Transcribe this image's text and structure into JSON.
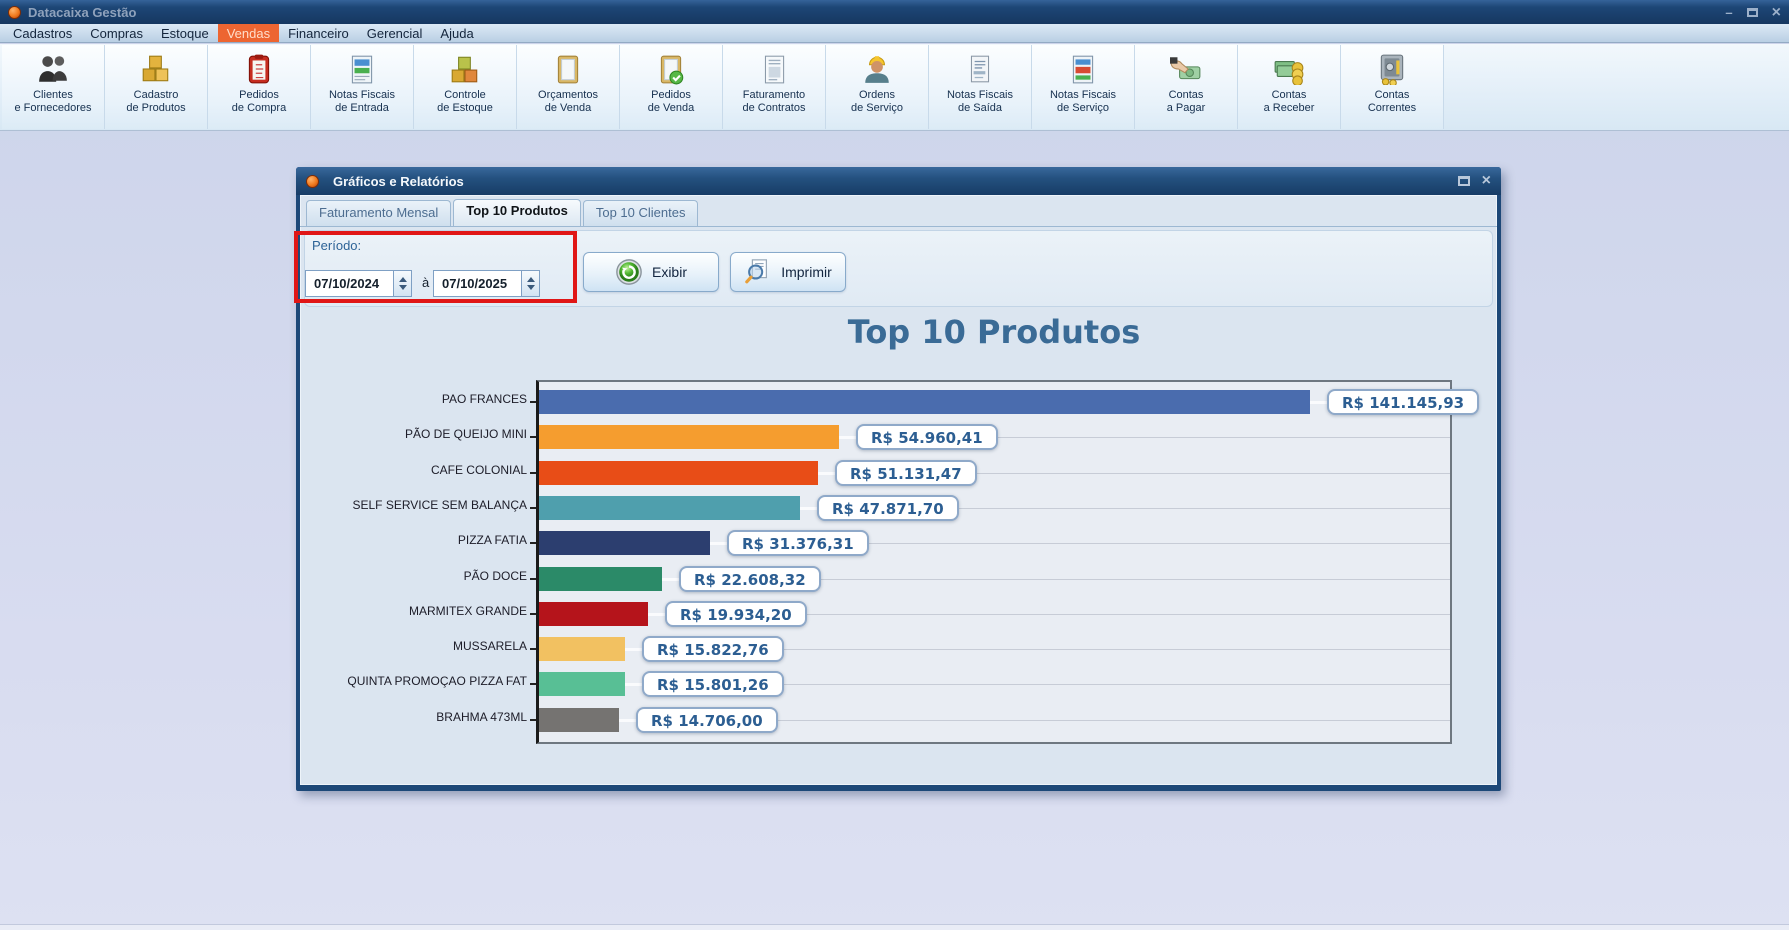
{
  "window": {
    "title": "Datacaixa Gestão",
    "controls": {
      "minimize": "–",
      "restore": "restore",
      "close": "×"
    }
  },
  "menubar": {
    "items": [
      "Cadastros",
      "Compras",
      "Estoque",
      "Vendas",
      "Financeiro",
      "Gerencial",
      "Ajuda"
    ],
    "active": "Vendas"
  },
  "toolbar": {
    "items": [
      {
        "label": "Clientes\ne Fornecedores",
        "icon": "clients-icon"
      },
      {
        "label": "Cadastro\nde Produtos",
        "icon": "products-icon"
      },
      {
        "label": "Pedidos\nde Compra",
        "icon": "purchase-orders-icon"
      },
      {
        "label": "Notas Fiscais\nde Entrada",
        "icon": "invoices-in-icon"
      },
      {
        "label": "Controle\nde Estoque",
        "icon": "stock-icon"
      },
      {
        "label": "Orçamentos\nde Venda",
        "icon": "sales-quotes-icon"
      },
      {
        "label": "Pedidos\nde Venda",
        "icon": "sales-orders-icon"
      },
      {
        "label": "Faturamento\nde Contratos",
        "icon": "contracts-icon"
      },
      {
        "label": "Ordens\nde Serviço",
        "icon": "service-orders-icon"
      },
      {
        "label": "Notas Fiscais\nde Saída",
        "icon": "invoices-out-icon"
      },
      {
        "label": "Notas Fiscais\nde Serviço",
        "icon": "service-invoices-icon"
      },
      {
        "label": "Contas\na Pagar",
        "icon": "payables-icon"
      },
      {
        "label": "Contas\na Receber",
        "icon": "receivables-icon"
      },
      {
        "label": "Contas\nCorrentes",
        "icon": "accounts-icon"
      }
    ]
  },
  "dialog": {
    "title": "Gráficos e Relatórios",
    "controls": {
      "maximize": "maximize",
      "close": "×"
    },
    "tabs": [
      {
        "label": "Faturamento Mensal",
        "active": false
      },
      {
        "label": "Top 10 Produtos",
        "active": true
      },
      {
        "label": "Top 10 Clientes",
        "active": false
      }
    ],
    "period": {
      "label": "Período:",
      "from": "07/10/2024",
      "separator": "à",
      "to": "07/10/2025"
    },
    "buttons": {
      "show": "Exibir",
      "print": "Imprimir"
    }
  },
  "annotation": {
    "type": "red-rectangle",
    "purpose": "highlights period date range fields"
  },
  "chart_data": {
    "type": "bar",
    "orientation": "horizontal",
    "title": "Top 10 Produtos",
    "categories": [
      "PAO FRANCES",
      "PÃO DE QUEIJO MINI",
      "CAFE COLONIAL",
      "SELF SERVICE SEM BALANÇA",
      "PIZZA FATIA",
      "PÃO DOCE",
      "MARMITEX GRANDE",
      "MUSSARELA",
      "QUINTA PROMOÇAO PIZZA FAT",
      "BRAHMA 473ML"
    ],
    "values": [
      141145.93,
      54960.41,
      51131.47,
      47871.7,
      31376.31,
      22608.32,
      19934.2,
      15822.76,
      15801.26,
      14706.0
    ],
    "value_labels": [
      "R$ 141.145,93",
      "R$ 54.960,41",
      "R$ 51.131,47",
      "R$ 47.871,70",
      "R$ 31.376,31",
      "R$ 22.608,32",
      "R$ 19.934,20",
      "R$ 15.822,76",
      "R$ 15.801,26",
      "R$ 14.706,00"
    ],
    "colors": [
      "#4a6cae",
      "#f59d2f",
      "#e84d17",
      "#4f9fad",
      "#2c3e6f",
      "#2b8a68",
      "#b5141b",
      "#f2c161",
      "#58bf95",
      "#757371"
    ],
    "xlabel": "",
    "ylabel": "",
    "xlim": [
      0,
      148000
    ],
    "grid": true,
    "legend": false
  }
}
